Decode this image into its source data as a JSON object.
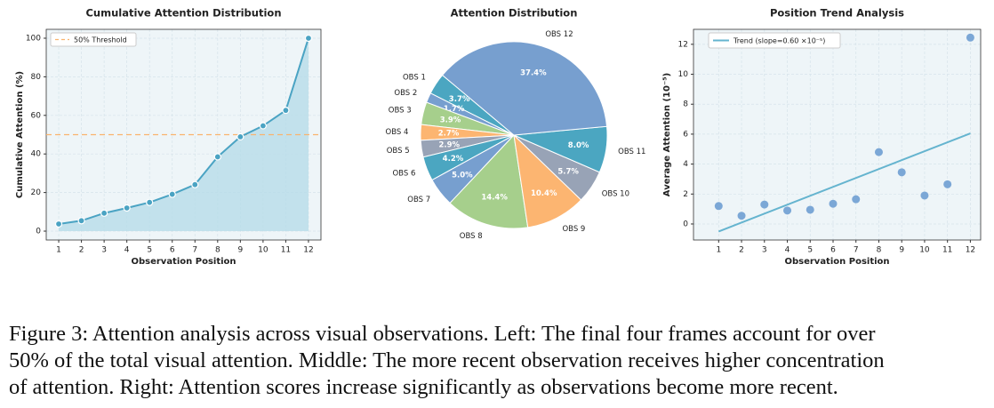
{
  "chart_data": [
    {
      "type": "line",
      "title": "Cumulative Attention Distribution",
      "xlabel": "Observation Position",
      "ylabel": "Cumulative Attention (%)",
      "x": [
        1,
        2,
        3,
        4,
        5,
        6,
        7,
        8,
        9,
        10,
        11,
        12
      ],
      "values": [
        3.7,
        5.4,
        9.3,
        12.0,
        14.9,
        19.1,
        24.1,
        38.5,
        48.9,
        54.6,
        62.6,
        100
      ],
      "color": "#4aa3c3",
      "area_color": "#b6dce8",
      "area": true,
      "threshold": {
        "value": 50,
        "label": "50% Threshold",
        "color": "#f9b46e"
      },
      "xlim": [
        0.45,
        12.55
      ],
      "ylim": [
        -4.6,
        104.6
      ],
      "xticks": [
        1,
        2,
        3,
        4,
        5,
        6,
        7,
        8,
        9,
        10,
        11,
        12
      ],
      "yticks": [
        0,
        20,
        40,
        60,
        80,
        100
      ],
      "grid": true,
      "legend": "upper left"
    },
    {
      "type": "pie",
      "title": "Attention Distribution",
      "categories": [
        "OBS 1",
        "OBS 2",
        "OBS 3",
        "OBS 4",
        "OBS 5",
        "OBS 6",
        "OBS 7",
        "OBS 8",
        "OBS 9",
        "OBS 10",
        "OBS 11",
        "OBS 12"
      ],
      "values": [
        3.7,
        1.7,
        3.9,
        2.7,
        2.9,
        4.2,
        5.0,
        14.4,
        10.4,
        5.7,
        8.0,
        37.4
      ],
      "value_labels": [
        "3.7%",
        "1.7%",
        "3.9%",
        "2.7%",
        "2.9%",
        "4.2%",
        "5.0%",
        "14.4%",
        "10.4%",
        "5.7%",
        "8.0%",
        "37.4%"
      ],
      "colors": [
        "#4ba6c1",
        "#779fcf",
        "#a6cf8c",
        "#fcb571",
        "#98a3b6",
        "#4ba6c1",
        "#779fcf",
        "#a6cf8c",
        "#fcb571",
        "#98a3b6",
        "#4ba6c1",
        "#779fcf"
      ],
      "start_angle": 140
    },
    {
      "type": "scatter",
      "title": "Position Trend Analysis",
      "xlabel": "Observation Position",
      "ylabel": "Average Attention (10⁻⁵)",
      "x": [
        1,
        2,
        3,
        4,
        5,
        6,
        7,
        8,
        9,
        10,
        11,
        12
      ],
      "values": [
        1.2,
        0.55,
        1.3,
        0.9,
        0.95,
        1.35,
        1.65,
        4.8,
        3.45,
        1.9,
        2.65,
        12.45
      ],
      "color": "#7ba7d6",
      "trend": {
        "name": "Trend (slope=0.60 ×10⁻⁵)",
        "x": [
          1,
          12
        ],
        "values": [
          -0.5,
          6.05
        ],
        "color": "#65b4cf"
      },
      "xlim": [
        -0.1,
        12.45
      ],
      "ylim": [
        -1.07,
        13.0
      ],
      "xticks": [
        1,
        2,
        3,
        4,
        5,
        6,
        7,
        8,
        9,
        10,
        11,
        12
      ],
      "yticks": [
        0,
        2,
        4,
        6,
        8,
        10,
        12
      ],
      "grid": true,
      "legend": "upper left"
    }
  ],
  "caption": [
    "Figure 3: Attention analysis across visual observations. Left: The final four frames account for over",
    "50% of the total visual attention. Middle: The more recent observation receives higher concentration",
    "of attention. Right: Attention scores increase significantly as observations become more recent."
  ]
}
